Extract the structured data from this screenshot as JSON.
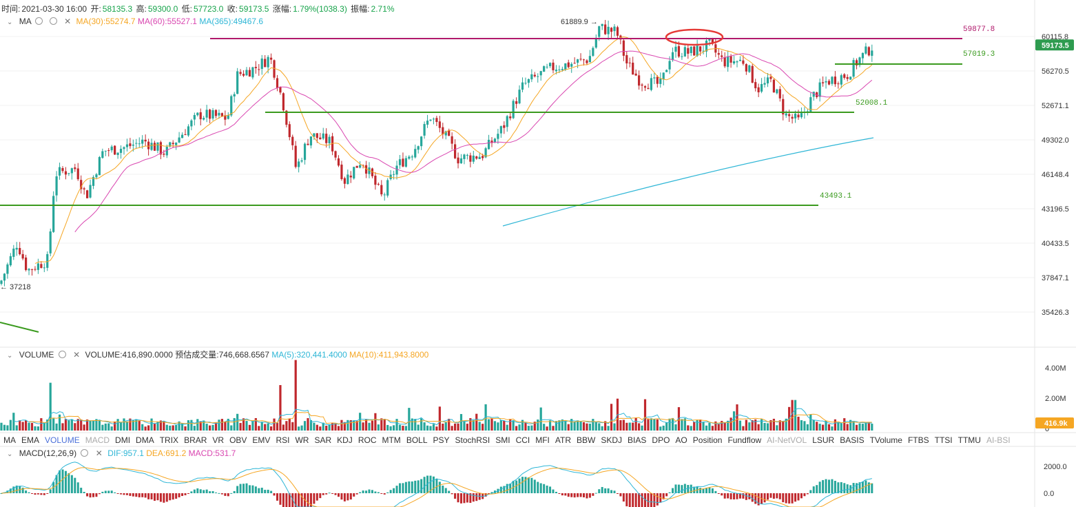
{
  "header": {
    "time_label": "时间:",
    "time_value": "2021-03-30 16:00",
    "open_label": "开:",
    "open_value": "58135.3",
    "high_label": "高:",
    "high_value": "59300.0",
    "low_label": "低:",
    "low_value": "57723.0",
    "close_label": "收:",
    "close_value": "59173.5",
    "change_label": "涨幅:",
    "change_value": "1.79%(1038.3)",
    "amp_label": "振幅:",
    "amp_value": "2.71%"
  },
  "ma_legend": {
    "name": "MA",
    "ma30": "MA(30):55274.7",
    "ma60": "MA(60):55527.1",
    "ma365": "MA(365):49467.6"
  },
  "volume_legend": {
    "name": "VOLUME",
    "volume": "VOLUME:416,890.0000",
    "estimate": "预估成交量:746,668.6567",
    "ma5": "MA(5):320,441.4000",
    "ma10": "MA(10):411,943.8000"
  },
  "macd_legend": {
    "name": "MACD(12,26,9)",
    "dif": "DIF:957.1",
    "dea": "DEA:691.2",
    "macd": "MACD:531.7"
  },
  "indicator_tabs": [
    "MA",
    "EMA",
    "VOLUME",
    "MACD",
    "DMI",
    "DMA",
    "TRIX",
    "BRAR",
    "VR",
    "OBV",
    "EMV",
    "RSI",
    "WR",
    "SAR",
    "KDJ",
    "ROC",
    "MTM",
    "BOLL",
    "PSY",
    "StochRSI",
    "SMI",
    "CCI",
    "MFI",
    "ATR",
    "BBW",
    "SKDJ",
    "BIAS",
    "DPO",
    "AO",
    "Position",
    "Fundflow",
    "AI-NetVOL",
    "LSUR",
    "BASIS",
    "TVolume",
    "FTBS",
    "TTSI",
    "TTMU",
    "AI-BSI"
  ],
  "active_tab": "VOLUME",
  "dim_tabs": [
    "MACD",
    "AI-NetVOL",
    "AI-BSI"
  ],
  "colors": {
    "up": "#26a69a",
    "down": "#c0282d",
    "ma30": "#f5a623",
    "ma60": "#d946b0",
    "ma365": "#2eb6d6",
    "green_line": "#3a9a1e",
    "magenta_line": "#b0186b",
    "circle": "#e53935",
    "price_tag": "#2e9b4f",
    "volume_tag": "#f5a623"
  },
  "chart_data": {
    "type": "candlestick",
    "price_axis_ticks": [
      "60115.8",
      "56270.5",
      "52671.1",
      "49302.0",
      "46148.4",
      "43196.5",
      "40433.5",
      "37847.1",
      "35426.3"
    ],
    "volume_axis_ticks": [
      "4.00M",
      "2.00M",
      "0"
    ],
    "macd_axis_ticks": [
      "2000.0",
      "0.0"
    ],
    "current_price": "59173.5",
    "current_volume": "416.9k",
    "high_marker": "61889.9",
    "low_marker": "37218",
    "levels": [
      {
        "label": "59877.8",
        "value": 59877.8
      },
      {
        "label": "57019.3",
        "value": 57019.3
      },
      {
        "label": "52008.1",
        "value": 52008.1
      },
      {
        "label": "43493.1",
        "value": 43493.1
      }
    ],
    "series": [
      {
        "name": "MA(30)"
      },
      {
        "name": "MA(60)"
      },
      {
        "name": "MA(365)"
      },
      {
        "name": "VOLUME"
      },
      {
        "name": "MA(5)"
      },
      {
        "name": "MA(10)"
      },
      {
        "name": "DIF"
      },
      {
        "name": "DEA"
      },
      {
        "name": "MACD"
      }
    ]
  }
}
